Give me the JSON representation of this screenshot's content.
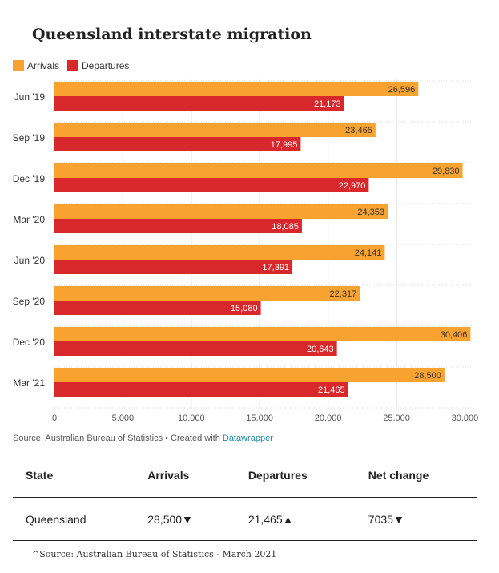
{
  "title": "Queensland interstate migration",
  "legend": {
    "arrivals": "Arrivals",
    "departures": "Departures"
  },
  "colors": {
    "arrivals": "#f8a22f",
    "departures": "#d8282b",
    "grid": "#d9d9d9",
    "axis_text": "#555555"
  },
  "chart_data": {
    "type": "bar",
    "orientation": "horizontal",
    "title": "Queensland interstate migration",
    "categories": [
      "Jun '19",
      "Sep '19",
      "Dec '19",
      "Mar '20",
      "Jun '20",
      "Sep '20",
      "Dec '20",
      "Mar '21"
    ],
    "series": [
      {
        "name": "Arrivals",
        "values": [
          26596,
          23465,
          29830,
          24353,
          24141,
          22317,
          30406,
          28500
        ]
      },
      {
        "name": "Departures",
        "values": [
          21173,
          17995,
          22970,
          18085,
          17391,
          15080,
          20643,
          21465
        ]
      }
    ],
    "xlim": [
      0,
      30500
    ],
    "x_ticks": [
      0,
      5000,
      10000,
      15000,
      20000,
      25000,
      30000
    ],
    "x_tick_labels": [
      "0",
      "5,000",
      "10,000",
      "15,000",
      "20,000",
      "25,000",
      "30,000"
    ],
    "legend_position": "top-left",
    "grid": true
  },
  "source": {
    "prefix": "Source: Australian Bureau of Statistics • Created with ",
    "link": "Datawrapper"
  },
  "table": {
    "headers": [
      "State",
      "Arrivals",
      "Departures",
      "Net change"
    ],
    "rows": [
      [
        "Queensland",
        "28,500▼",
        "21,465▲",
        "7035▼"
      ]
    ]
  },
  "footnote": "^Source: Australian Bureau of Statistics - March 2021"
}
